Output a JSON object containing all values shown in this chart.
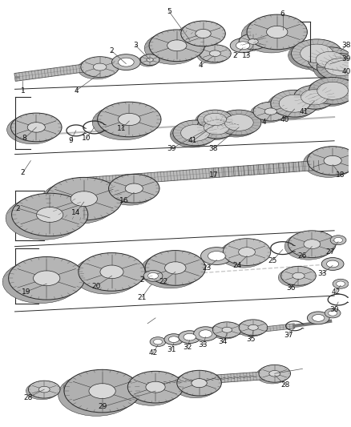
{
  "bg_color": "#ffffff",
  "line_color": "#2a2a2a",
  "label_color": "#111111",
  "label_fontsize": 6.5,
  "gear_face_color": "#c8c8c8",
  "gear_dark_color": "#888888",
  "gear_light_color": "#e8e8e8",
  "shaft_color": "#aaaaaa",
  "shaft_dark": "#666666"
}
